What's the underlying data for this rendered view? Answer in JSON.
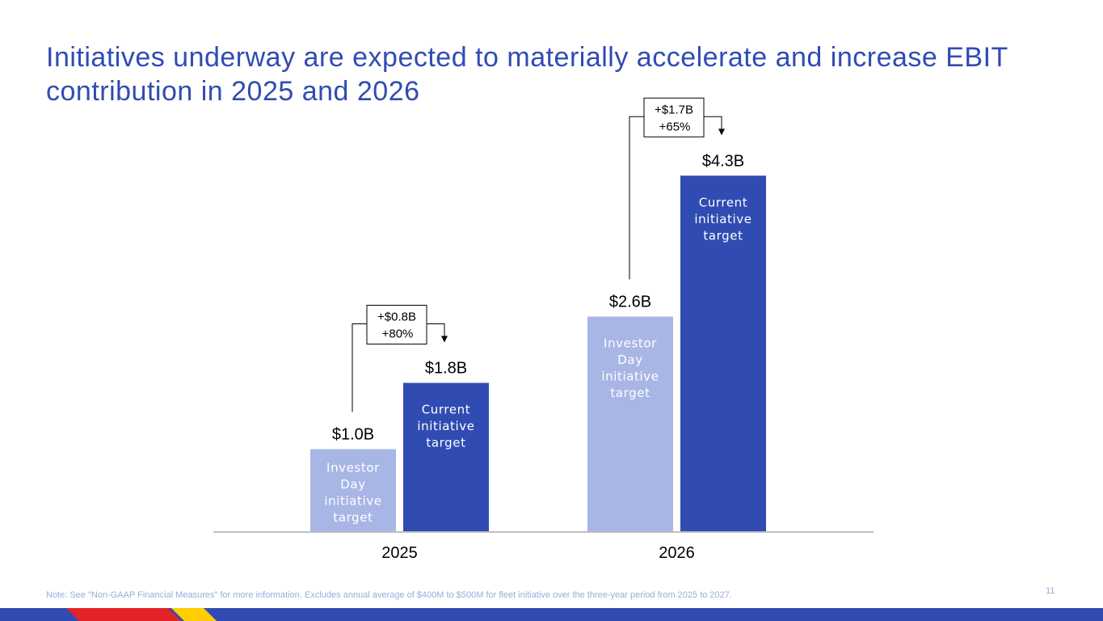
{
  "slide": {
    "title": "Initiatives underway are expected to materially accelerate and increase EBIT contribution in 2025 and 2026",
    "footnote": "Note: See \"Non-GAAP Financial Measures\" for more information. Excludes annual average of $400M to $500M for fleet initiative over the three-year period from 2025 to 2027.",
    "page_number": "11"
  },
  "colors": {
    "title": "#304CB2",
    "investor_day": "#A8B6E6",
    "current": "#304CB2",
    "axis": "#BFBFBF",
    "footnote": "#9AACD9",
    "footer_blue": "#304CB2",
    "footer_red": "#E3222A",
    "footer_yellow": "#FFCD00"
  },
  "chart_data": {
    "type": "bar",
    "title": "",
    "xlabel": "",
    "ylabel": "",
    "unit": "$B",
    "ylim": [
      0,
      5
    ],
    "categories": [
      "2025",
      "2026"
    ],
    "series": [
      {
        "name": "Investor Day initiative target",
        "key": "investor_day",
        "values": [
          1.0,
          2.6
        ],
        "value_labels": [
          "$1.0B",
          "$2.6B"
        ],
        "inside_label": [
          "Investor",
          "Day",
          "initiative",
          "target"
        ]
      },
      {
        "name": "Current initiative target",
        "key": "current",
        "values": [
          1.8,
          4.3
        ],
        "value_labels": [
          "$1.8B",
          "$4.3B"
        ],
        "inside_label": [
          "Current",
          "initiative",
          "target"
        ]
      }
    ],
    "annotations": [
      {
        "category": "2025",
        "delta": "+$0.8B",
        "pct": "+80%"
      },
      {
        "category": "2026",
        "delta": "+$1.7B",
        "pct": "+65%"
      }
    ]
  }
}
